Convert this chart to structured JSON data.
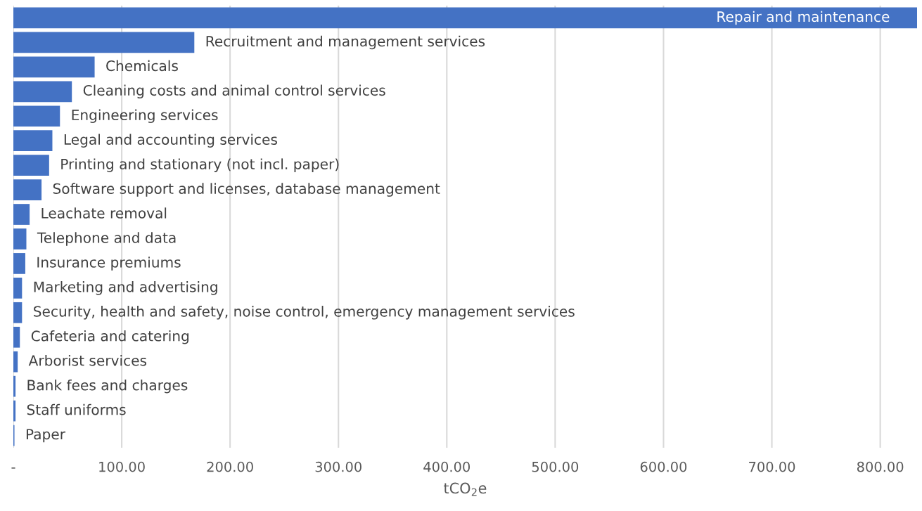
{
  "chart_data": {
    "type": "bar",
    "orientation": "horizontal",
    "xlabel": "tCO$_{2}$e",
    "color": "#4472c4",
    "grid": "x",
    "tick_labels": "x",
    "categories": [
      "Repair and maintenance",
      "Recruitment and management services",
      "Chemicals",
      "Cleaning costs and animal control services",
      "Engineering services",
      "Legal and accounting services",
      "Printing and stationary (not incl. paper)",
      "Software support and licenses, database management",
      "Leachate removal",
      "Telephone and data",
      "Insurance premiums",
      "Marketing and advertising",
      "Security, health and safety, noise control, emergency management services",
      "Cafeteria and catering",
      "Arborist services",
      "Bank fees and charges",
      "Staff uniforms",
      "Paper"
    ],
    "values": [
      834,
      167,
      75,
      54,
      43,
      36,
      33,
      26,
      15,
      12,
      11,
      8,
      8,
      6,
      4,
      2,
      2,
      1
    ],
    "xlim": [
      0,
      834
    ],
    "xticks": [
      {
        "value": 0,
        "label": "-"
      },
      {
        "value": 100,
        "label": "100.00"
      },
      {
        "value": 200,
        "label": "200.00"
      },
      {
        "value": 300,
        "label": "300.00"
      },
      {
        "value": 400,
        "label": "400.00"
      },
      {
        "value": 500,
        "label": "500.00"
      },
      {
        "value": 600,
        "label": "600.00"
      },
      {
        "value": 700,
        "label": "700.00"
      },
      {
        "value": 800,
        "label": "800.00"
      }
    ]
  }
}
